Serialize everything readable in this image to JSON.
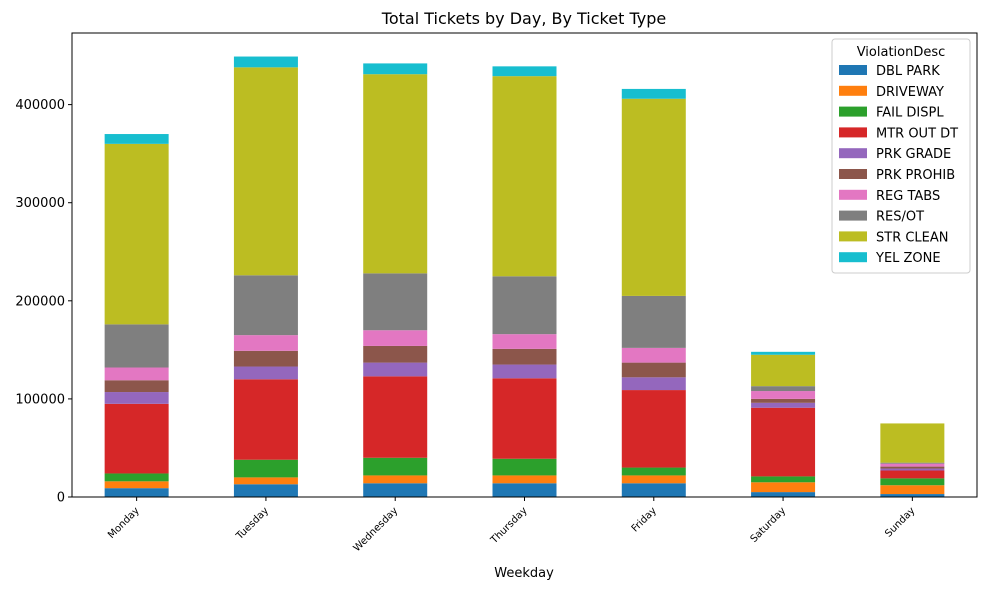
{
  "chart_data": {
    "type": "bar",
    "stacked": true,
    "title": "Total Tickets by Day, By Ticket Type",
    "xlabel": "Weekday",
    "ylabel": "",
    "ylim": [
      0,
      473000
    ],
    "yticks": [
      0,
      100000,
      200000,
      300000,
      400000
    ],
    "ytick_labels": [
      "0",
      "100000",
      "200000",
      "300000",
      "400000"
    ],
    "categories": [
      "Monday",
      "Tuesday",
      "Wednesday",
      "Thursday",
      "Friday",
      "Saturday",
      "Sunday"
    ],
    "legend": {
      "title": "ViolationDesc",
      "position": "top-right"
    },
    "series": [
      {
        "name": "DBL PARK",
        "color": "#1f77b4",
        "values": [
          9000,
          13000,
          14000,
          14000,
          14000,
          5000,
          3000
        ]
      },
      {
        "name": "DRIVEWAY",
        "color": "#ff7f0e",
        "values": [
          7000,
          7000,
          8000,
          8000,
          8000,
          10000,
          9000
        ]
      },
      {
        "name": "FAIL DISPL",
        "color": "#2ca02c",
        "values": [
          8000,
          18000,
          18000,
          17000,
          8000,
          6000,
          7000
        ]
      },
      {
        "name": "MTR OUT DT",
        "color": "#d62728",
        "values": [
          71000,
          82000,
          83000,
          82000,
          79000,
          70000,
          8000
        ]
      },
      {
        "name": "PRK GRADE",
        "color": "#9467bd",
        "values": [
          12000,
          13000,
          14000,
          14000,
          13000,
          5000,
          2000
        ]
      },
      {
        "name": "PRK PROHIB",
        "color": "#8c564b",
        "values": [
          12000,
          16000,
          17000,
          16000,
          15000,
          4000,
          2000
        ]
      },
      {
        "name": "REG TABS",
        "color": "#e377c2",
        "values": [
          13000,
          16000,
          16000,
          15000,
          15000,
          8000,
          3000
        ]
      },
      {
        "name": "RES/OT",
        "color": "#7f7f7f",
        "values": [
          44000,
          61000,
          58000,
          59000,
          53000,
          5000,
          1000
        ]
      },
      {
        "name": "STR CLEAN",
        "color": "#bcbd22",
        "values": [
          184000,
          212000,
          203000,
          204000,
          201000,
          32000,
          40000
        ]
      },
      {
        "name": "YEL ZONE",
        "color": "#17becf",
        "values": [
          10000,
          11000,
          11000,
          10000,
          10000,
          3000,
          0
        ]
      }
    ]
  }
}
